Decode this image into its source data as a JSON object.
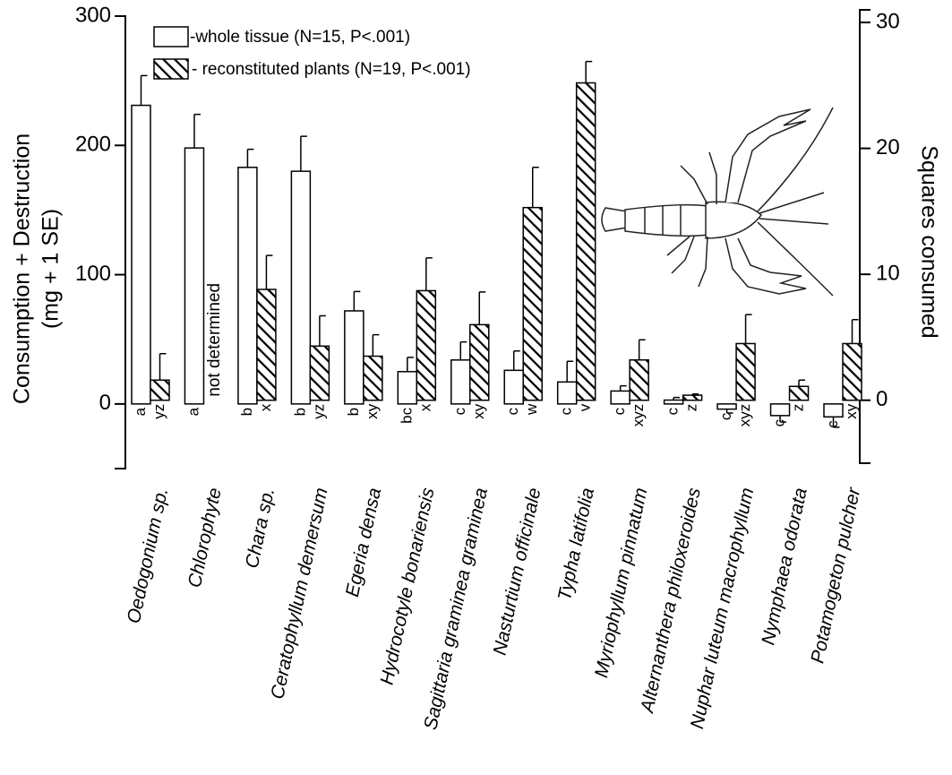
{
  "chart_data": {
    "type": "bar",
    "legend": "top-left",
    "ylabel": [
      "Consumption + Destruction",
      "(mg + 1 SE)"
    ],
    "y2label": "Squares consumed",
    "categories": [
      "Oedogonium sp.",
      "Chlorophyte",
      "Chara sp.",
      "Ceratophyllum demersum",
      "Egeria densa",
      "Hydrocotyle bonariensis",
      "Sagittaria graminea graminea",
      "Nasturtium officinale",
      "Typha latifolia",
      "Myriophyllum pinnatum",
      "Alternanthera philoxeroides",
      "Nuphar luteum macrophyllum",
      "Nymphaea odorata",
      "Potamogeton pulcher"
    ],
    "series": [
      {
        "name": "-whole tissue (N=15, P<.001)",
        "color": "#ffffff",
        "hatch": false,
        "values": [
          231,
          198,
          183,
          180,
          72,
          25,
          34,
          26,
          17,
          10,
          3,
          -4,
          -9,
          -10
        ],
        "errors": [
          23,
          26,
          14,
          27,
          15,
          11,
          14,
          15,
          16,
          4,
          2,
          3,
          5,
          8
        ],
        "group_labels": [
          "a",
          "a",
          "b",
          "b",
          "b",
          "bc",
          "c",
          "c",
          "c",
          "c",
          "c",
          "c",
          "c",
          "c"
        ]
      },
      {
        "name": "- reconstituted plants (N=19, P<.001)",
        "color": "#000000",
        "hatch": true,
        "axis": "y2",
        "values": [
          1.6,
          null,
          8.8,
          4.3,
          3.5,
          8.7,
          6.0,
          15.3,
          25.2,
          3.2,
          0.4,
          4.5,
          1.1,
          4.5
        ],
        "errors": [
          2.1,
          null,
          2.7,
          2.4,
          1.7,
          2.6,
          2.6,
          3.2,
          1.7,
          1.6,
          0.1,
          2.3,
          0.5,
          1.9
        ],
        "group_labels": [
          "yz",
          null,
          "x",
          "yz",
          "xy",
          "x",
          "xy",
          "w",
          "v",
          "xyz",
          "z",
          "xyz",
          "z",
          "xy"
        ]
      }
    ],
    "annotation": "not determined",
    "ylim": [
      -50,
      300
    ],
    "yticks": [
      0,
      100,
      200,
      300
    ],
    "y2lim": [
      -5,
      31
    ],
    "y2ticks": [
      0,
      10,
      20,
      30
    ],
    "grid": false
  }
}
